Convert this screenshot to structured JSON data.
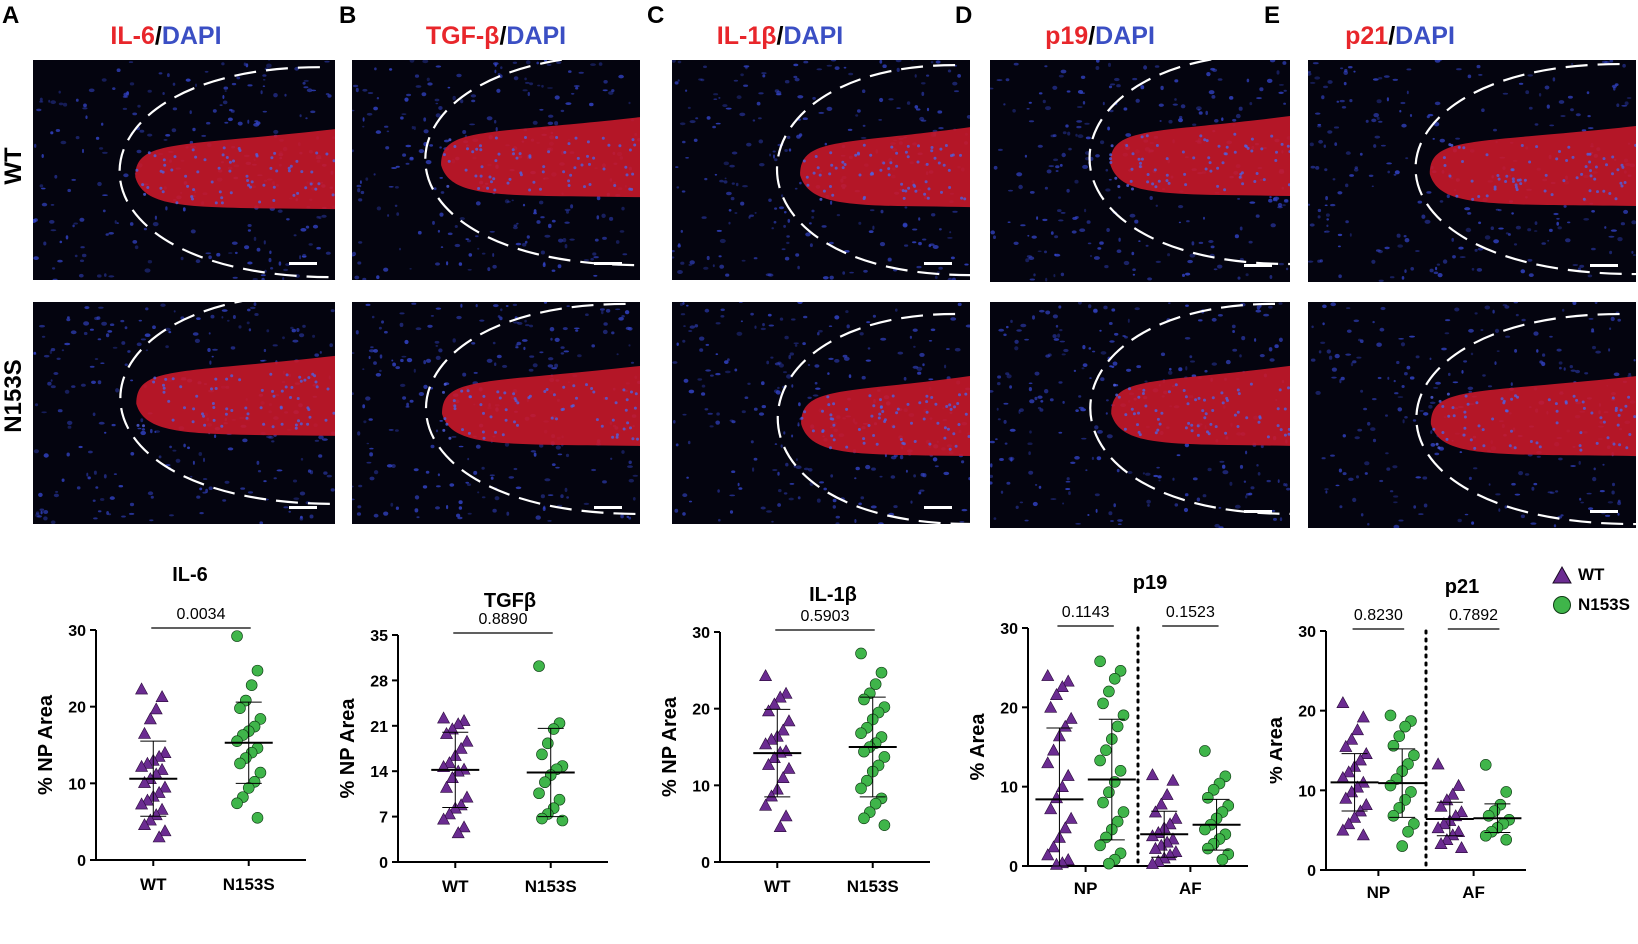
{
  "panels": [
    {
      "letter": "A",
      "marker": "IL-6",
      "sep": "/",
      "stain": "DAPI"
    },
    {
      "letter": "B",
      "marker": "TGF-β",
      "sep": "/",
      "stain": "DAPI"
    },
    {
      "letter": "C",
      "marker": "IL-1β",
      "sep": "/",
      "stain": "DAPI"
    },
    {
      "letter": "D",
      "marker": "p19",
      "sep": "/",
      "stain": "DAPI"
    },
    {
      "letter": "E",
      "marker": "p21",
      "sep": "/",
      "stain": "DAPI"
    }
  ],
  "row_labels": [
    "WT",
    "N153S"
  ],
  "colors": {
    "marker_red": "#e8262b",
    "dapi_blue": "#3b4fc4",
    "wt_purple": "#6b2c91",
    "n153s_green": "#3fb54a"
  },
  "legend": [
    {
      "symbol": "triangle",
      "label": "WT"
    },
    {
      "symbol": "circle",
      "label": "N153S"
    }
  ],
  "chart_data": [
    {
      "type": "scatter",
      "title": "IL-6",
      "ylabel": "% NP Area",
      "ylim": [
        0,
        30
      ],
      "yticks": [
        "0",
        "10",
        "20",
        "30"
      ],
      "categories": [
        "WT",
        "N153S"
      ],
      "pvalues": [
        {
          "label": "0.0034",
          "from": 0,
          "to": 1
        }
      ],
      "series": [
        {
          "name": "WT",
          "symbol": "triangle",
          "mean": 10.6,
          "sd": 4.9,
          "values": [
            22.3,
            21.3,
            19.7,
            18.4,
            16.5,
            14.0,
            13.5,
            13.0,
            12.6,
            12.2,
            11.8,
            11.2,
            10.6,
            10.1,
            9.5,
            8.8,
            8.3,
            7.8,
            7.3,
            6.6,
            5.9,
            5.2,
            4.6,
            3.8,
            3.0
          ]
        },
        {
          "name": "N153S",
          "symbol": "circle",
          "mean": 15.3,
          "sd": 5.3,
          "values": [
            29.2,
            24.7,
            22.8,
            20.8,
            19.8,
            18.4,
            17.4,
            16.8,
            16.3,
            15.5,
            14.6,
            14.0,
            13.3,
            12.6,
            11.4,
            10.2,
            9.4,
            8.2,
            7.4,
            5.5
          ]
        }
      ]
    },
    {
      "type": "scatter",
      "title": "TGFβ",
      "ylabel": "% NP Area",
      "ylim": [
        0,
        35
      ],
      "yticks": [
        "0",
        "7",
        "14",
        "21",
        "28",
        "35"
      ],
      "categories": [
        "WT",
        "N153S"
      ],
      "pvalues": [
        {
          "label": "0.8890",
          "from": 0,
          "to": 1
        }
      ],
      "series": [
        {
          "name": "WT",
          "symbol": "triangle",
          "mean": 14.2,
          "sd": 5.8,
          "values": [
            22.2,
            21.8,
            21.3,
            20.5,
            19.8,
            18.6,
            17.5,
            16.4,
            15.3,
            14.7,
            14.3,
            14.0,
            13.0,
            11.5,
            10.0,
            8.8,
            8.3,
            7.4,
            6.6,
            5.4,
            4.5
          ]
        },
        {
          "name": "N153S",
          "symbol": "circle",
          "mean": 13.8,
          "sd": 6.8,
          "values": [
            30.2,
            21.4,
            20.5,
            18.3,
            16.6,
            14.8,
            14.3,
            13.4,
            12.3,
            10.6,
            9.6,
            8.3,
            7.4,
            6.7,
            6.4
          ]
        }
      ]
    },
    {
      "type": "scatter",
      "title": "IL-1β",
      "ylabel": "% NP Area",
      "ylim": [
        0,
        30
      ],
      "yticks": [
        "0",
        "10",
        "20",
        "30"
      ],
      "categories": [
        "WT",
        "N153S"
      ],
      "pvalues": [
        {
          "label": "0.5903",
          "from": 0,
          "to": 1
        }
      ],
      "series": [
        {
          "name": "WT",
          "symbol": "triangle",
          "mean": 14.2,
          "sd": 5.7,
          "values": [
            24.3,
            22.0,
            21.5,
            20.6,
            19.7,
            18.4,
            17.2,
            16.4,
            16.0,
            15.4,
            14.5,
            14.3,
            13.6,
            12.7,
            12.2,
            11.0,
            9.5,
            8.6,
            7.4,
            6.0,
            4.6
          ]
        },
        {
          "name": "N153S",
          "symbol": "circle",
          "mean": 15.0,
          "sd": 6.5,
          "values": [
            27.2,
            24.7,
            23.2,
            22.0,
            21.2,
            20.2,
            19.5,
            18.6,
            17.5,
            16.8,
            16.3,
            15.5,
            15.0,
            14.4,
            13.7,
            12.6,
            11.8,
            10.6,
            9.6,
            8.3,
            7.6,
            6.5,
            5.7,
            4.8
          ]
        }
      ]
    },
    {
      "type": "scatter",
      "title": "p19",
      "ylabel": "% Area",
      "ylim": [
        0,
        30
      ],
      "yticks": [
        "0",
        "10",
        "20",
        "30"
      ],
      "categories": [
        "NP",
        "AF"
      ],
      "pvalues": [
        {
          "label": "0.1143",
          "from": 0,
          "to": 1
        },
        {
          "label": "0.1523",
          "from": 2,
          "to": 3
        }
      ],
      "divider": true,
      "series": [
        {
          "name": "WT",
          "symbol": "triangle",
          "group": "NP",
          "mean": 8.4,
          "sd": 9.0,
          "values": [
            24.0,
            23.3,
            22.6,
            21.6,
            20.0,
            18.6,
            17.6,
            16.4,
            14.6,
            13.0,
            11.4,
            10.0,
            8.6,
            7.2,
            6.0,
            4.8,
            3.6,
            2.4,
            1.4,
            0.8,
            0.4,
            0.2
          ]
        },
        {
          "name": "N153S",
          "symbol": "circle",
          "group": "NP",
          "mean": 10.9,
          "sd": 7.6,
          "values": [
            25.8,
            24.6,
            23.6,
            22.0,
            20.5,
            19.0,
            17.6,
            16.0,
            14.6,
            13.3,
            12.0,
            10.6,
            9.3,
            8.0,
            6.8,
            5.6,
            4.6,
            3.6,
            2.6,
            1.6,
            0.8,
            0.3
          ]
        },
        {
          "name": "WT",
          "symbol": "triangle",
          "group": "AF",
          "mean": 4.0,
          "sd": 2.9,
          "values": [
            11.5,
            10.8,
            9.0,
            7.8,
            6.8,
            6.0,
            5.3,
            4.8,
            4.2,
            3.8,
            3.4,
            3.0,
            2.6,
            2.2,
            1.8,
            1.4,
            1.0,
            0.6,
            0.3
          ]
        },
        {
          "name": "N153S",
          "symbol": "circle",
          "group": "AF",
          "mean": 5.2,
          "sd": 3.2,
          "values": [
            14.5,
            11.3,
            10.4,
            9.6,
            8.6,
            7.6,
            6.8,
            6.0,
            5.2,
            4.6,
            4.0,
            3.4,
            2.8,
            2.2,
            1.5,
            0.8
          ]
        }
      ]
    },
    {
      "type": "scatter",
      "title": "p21",
      "ylabel": "% Area",
      "ylim": [
        0,
        30
      ],
      "yticks": [
        "0",
        "10",
        "20",
        "30"
      ],
      "categories": [
        "NP",
        "AF"
      ],
      "pvalues": [
        {
          "label": "0.8230",
          "from": 0,
          "to": 1
        },
        {
          "label": "0.7892",
          "from": 2,
          "to": 3
        }
      ],
      "divider": true,
      "series": [
        {
          "name": "WT",
          "symbol": "triangle",
          "group": "NP",
          "mean": 11.0,
          "sd": 3.6,
          "values": [
            21.0,
            19.2,
            17.6,
            16.4,
            15.5,
            14.6,
            13.8,
            13.0,
            12.3,
            11.6,
            11.0,
            10.4,
            9.8,
            9.0,
            8.2,
            7.4,
            6.6,
            5.8,
            5.0,
            4.4
          ]
        },
        {
          "name": "N153S",
          "symbol": "circle",
          "group": "NP",
          "mean": 10.9,
          "sd": 4.3,
          "values": [
            19.4,
            18.7,
            18.0,
            16.8,
            15.6,
            14.4,
            13.3,
            12.4,
            11.4,
            10.6,
            9.8,
            8.8,
            7.8,
            6.8,
            5.8,
            4.8,
            3.0
          ]
        },
        {
          "name": "WT",
          "symbol": "triangle",
          "group": "AF",
          "mean": 6.4,
          "sd": 2.1,
          "values": [
            13.3,
            10.6,
            9.5,
            8.8,
            8.0,
            7.3,
            6.8,
            6.2,
            5.8,
            5.3,
            4.8,
            4.4,
            3.8,
            3.3,
            2.8
          ]
        },
        {
          "name": "N153S",
          "symbol": "circle",
          "group": "AF",
          "mean": 6.5,
          "sd": 1.8,
          "values": [
            13.2,
            9.8,
            8.2,
            7.4,
            6.8,
            6.3,
            5.8,
            5.3,
            4.8,
            4.3,
            3.8
          ]
        }
      ]
    }
  ]
}
